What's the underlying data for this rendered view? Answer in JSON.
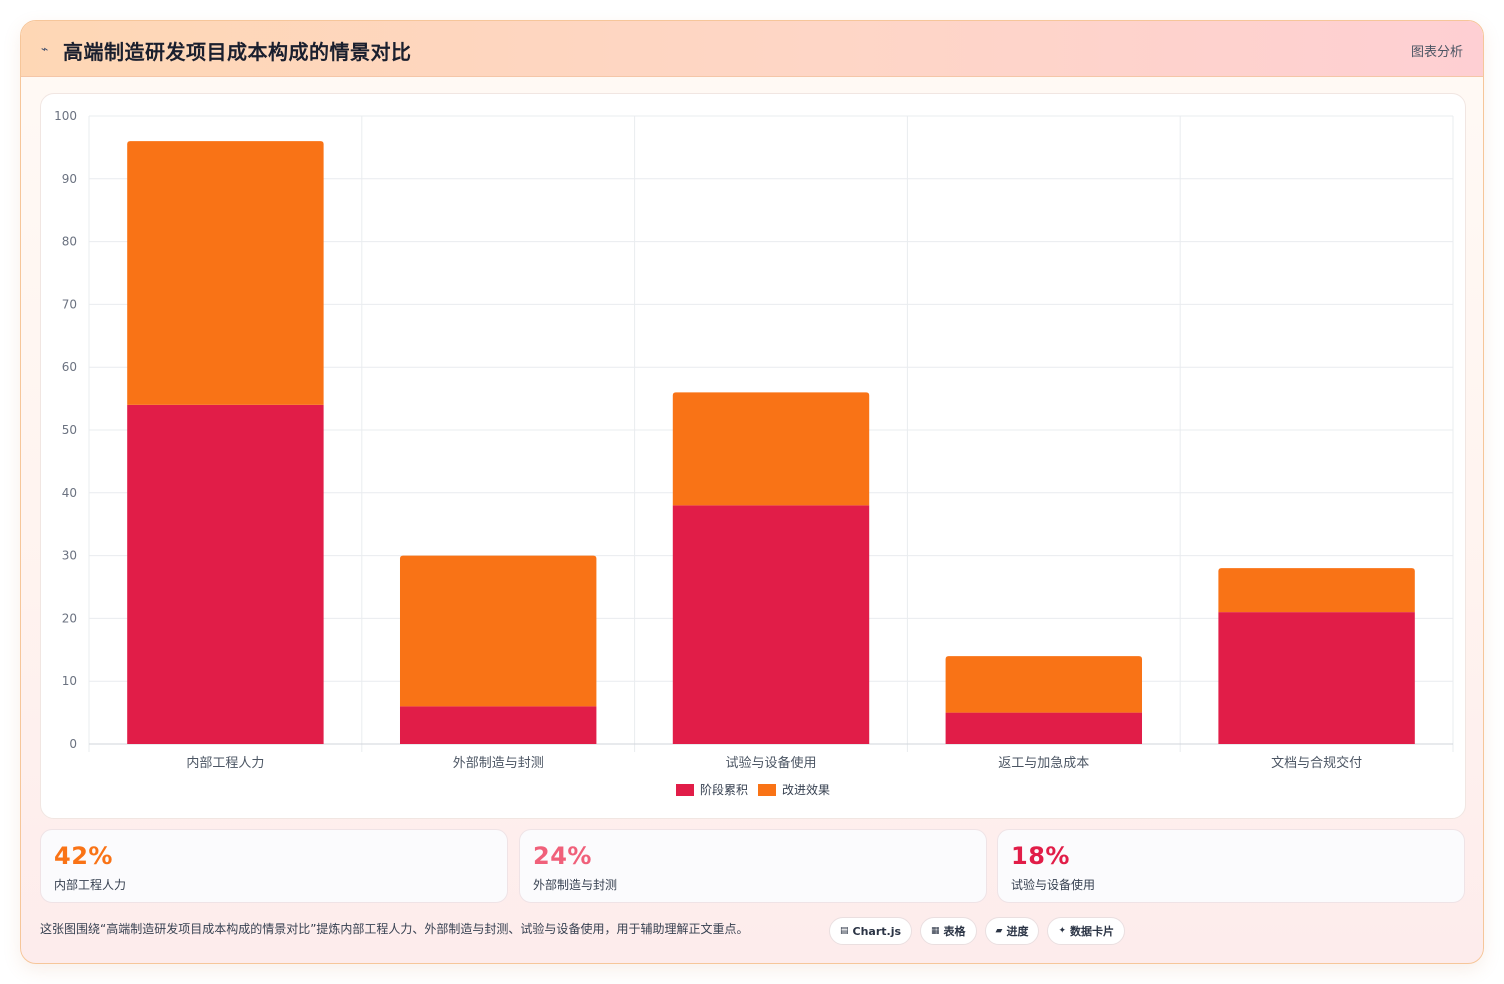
{
  "header": {
    "icon": "chart-line-icon",
    "title": "高端制造研发项目成本构成的情景对比",
    "link": "图表分析"
  },
  "chart_data": {
    "type": "bar",
    "stacked": true,
    "categories": [
      "内部工程人力",
      "外部制造与封测",
      "试验与设备使用",
      "返工与加急成本",
      "文档与合规交付"
    ],
    "series": [
      {
        "name": "阶段累积",
        "color": "#e11d48",
        "values": [
          54,
          6,
          38,
          5,
          21
        ]
      },
      {
        "name": "改进效果",
        "color": "#f97316",
        "values": [
          42,
          24,
          18,
          9,
          7
        ]
      }
    ],
    "ylim": [
      0,
      100
    ],
    "yticks": [
      0,
      10,
      20,
      30,
      40,
      50,
      60,
      70,
      80,
      90,
      100
    ],
    "grid": true,
    "legend": "bottom"
  },
  "stats": [
    {
      "value": "42%",
      "label": "内部工程人力",
      "color": "#f97316"
    },
    {
      "value": "24%",
      "label": "外部制造与封测",
      "color": "#f0607a"
    },
    {
      "value": "18%",
      "label": "试验与设备使用",
      "color": "#e11d48"
    }
  ],
  "caption": "这张图围绕“高端制造研发项目成本构成的情景对比”提炼内部工程人力、外部制造与封测、试验与设备使用，用于辅助理解正文重点。",
  "tags": [
    {
      "icon": "▤",
      "label": "Chart.js"
    },
    {
      "icon": "▦",
      "label": "表格"
    },
    {
      "icon": "▰",
      "label": "进度"
    },
    {
      "icon": "✦",
      "label": "数据卡片"
    }
  ]
}
